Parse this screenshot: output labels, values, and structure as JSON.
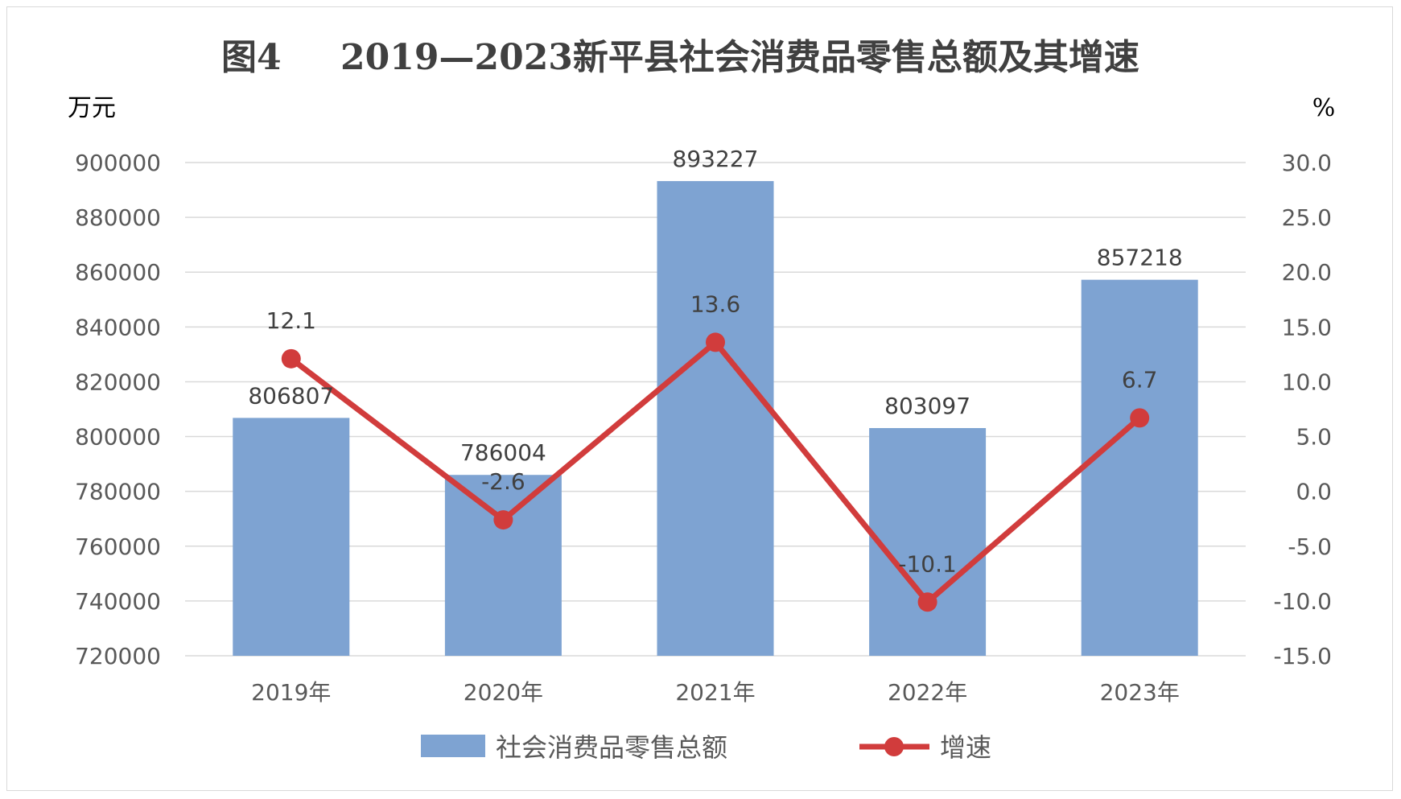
{
  "chart_data": {
    "type": "bar",
    "title_prefix": "图4",
    "title": "2019—2023新平县社会消费品零售总额及其增速",
    "y_left_unit": "万元",
    "y_right_unit": "%",
    "categories": [
      "2019年",
      "2020年",
      "2021年",
      "2022年",
      "2023年"
    ],
    "ylim_left": [
      720000,
      900000
    ],
    "ylim_right": [
      -15.0,
      30.0
    ],
    "y_left_ticks": [
      "900000",
      "880000",
      "860000",
      "840000",
      "820000",
      "800000",
      "780000",
      "760000",
      "740000",
      "720000"
    ],
    "y_right_ticks": [
      "30.0",
      "25.0",
      "20.0",
      "15.0",
      "10.0",
      "5.0",
      "0.0",
      "-5.0",
      "-10.0",
      "-15.0"
    ],
    "series": [
      {
        "name": "社会消费品零售总额",
        "type": "bar",
        "axis": "left",
        "color": "#7ea3d2",
        "values": [
          806807,
          786004,
          893227,
          803097,
          857218
        ],
        "labels": [
          "806807",
          "786004",
          "893227",
          "803097",
          "857218"
        ]
      },
      {
        "name": "增速",
        "type": "line",
        "axis": "right",
        "color": "#d13c3c",
        "values": [
          12.1,
          -2.6,
          13.6,
          -10.1,
          6.7
        ],
        "labels": [
          "12.1",
          "-2.6",
          "13.6",
          "-10.1",
          "6.7"
        ]
      }
    ],
    "grid": true,
    "legend_position": "bottom"
  }
}
